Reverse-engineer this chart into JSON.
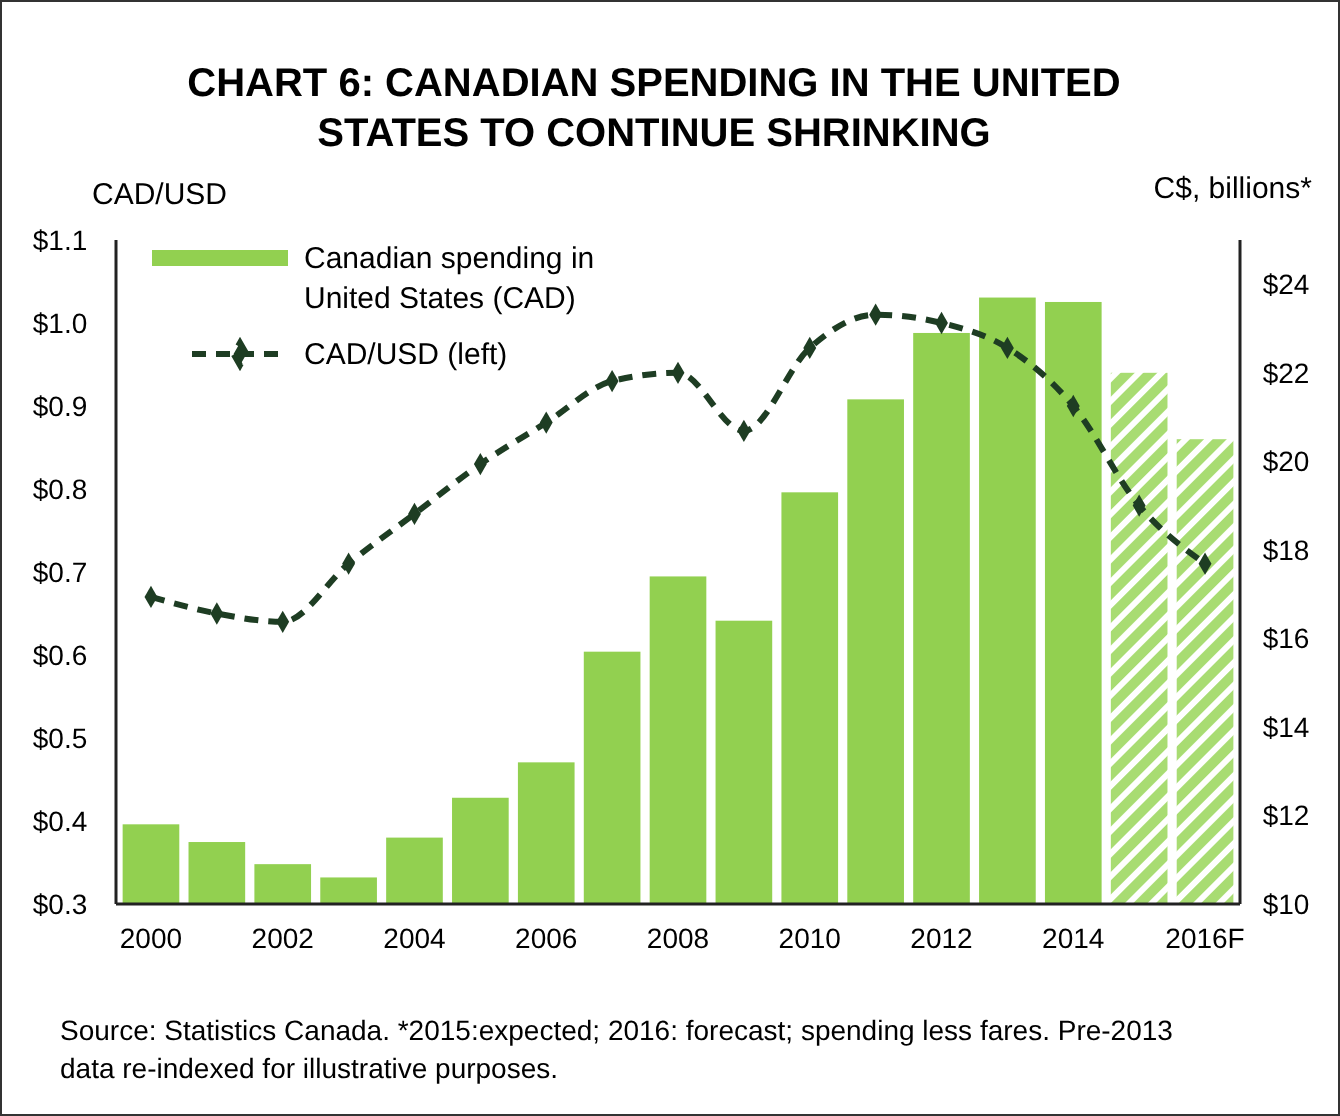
{
  "chart_data": {
    "type": "bar",
    "title": "CHART 6: CANADIAN SPENDING IN THE UNITED STATES TO CONTINUE SHRINKING",
    "ylabel": "CAD/USD",
    "y2label": "C$, billions*",
    "categories": [
      "2000",
      null,
      "2002",
      null,
      "2004",
      null,
      "2006",
      null,
      "2008",
      null,
      "2010",
      null,
      "2012",
      null,
      "2014",
      null,
      "2016F"
    ],
    "series": [
      {
        "name": "Canadian spending in United States (CAD)",
        "type": "bar",
        "axis": "y2",
        "color": "#92d050",
        "colors": [
          "#92d050",
          "#92d050",
          "#92d050",
          "#92d050",
          "#92d050",
          "#92d050",
          "#92d050",
          "#92d050",
          "#92d050",
          "#92d050",
          "#92d050",
          "#92d050",
          "#92d050",
          "#92d050",
          "#92d050",
          "#a8dc72",
          "#a8dc72"
        ],
        "values": [
          11.8,
          11.4,
          10.9,
          10.6,
          11.5,
          12.4,
          13.2,
          15.7,
          17.4,
          16.4,
          19.3,
          21.4,
          22.9,
          23.7,
          23.6,
          22.0,
          20.5
        ]
      },
      {
        "name": "CAD/USD (left)",
        "type": "line",
        "color": "#1e3d23",
        "marker": "diamond",
        "line_style": "dashed",
        "values": [
          0.67,
          0.65,
          0.64,
          0.71,
          0.77,
          0.83,
          0.88,
          0.93,
          0.94,
          0.87,
          0.97,
          1.01,
          1.0,
          0.97,
          0.9,
          0.78,
          0.71
        ]
      }
    ],
    "ylim": [
      0.3,
      1.1
    ],
    "yticks": [
      {
        "value": 0.3,
        "label": "$0.3"
      },
      {
        "value": 0.4,
        "label": "$0.4"
      },
      {
        "value": 0.5,
        "label": "$0.5"
      },
      {
        "value": 0.6,
        "label": "$0.6"
      },
      {
        "value": 0.7,
        "label": "$0.7"
      },
      {
        "value": 0.8,
        "label": "$0.8"
      },
      {
        "value": 0.9,
        "label": "$0.9"
      },
      {
        "value": 1.0,
        "label": "$1.0"
      },
      {
        "value": 1.1,
        "label": "$1.1"
      }
    ],
    "y2lim": [
      10,
      25
    ],
    "y2ticks": [
      {
        "value": 10,
        "label": "$10"
      },
      {
        "value": 12,
        "label": "$12"
      },
      {
        "value": 14,
        "label": "$14"
      },
      {
        "value": 16,
        "label": "$16"
      },
      {
        "value": 18,
        "label": "$18"
      },
      {
        "value": 20,
        "label": "$20"
      },
      {
        "value": 22,
        "label": "$22"
      },
      {
        "value": 24,
        "label": "$24"
      }
    ],
    "legend": "top left",
    "grid": false,
    "annotations": [
      "Source: Statistics Canada. *2015:expected; 2016: forecast; spending less fares. Pre-2013 data re-indexed for illustrative purposes."
    ]
  }
}
